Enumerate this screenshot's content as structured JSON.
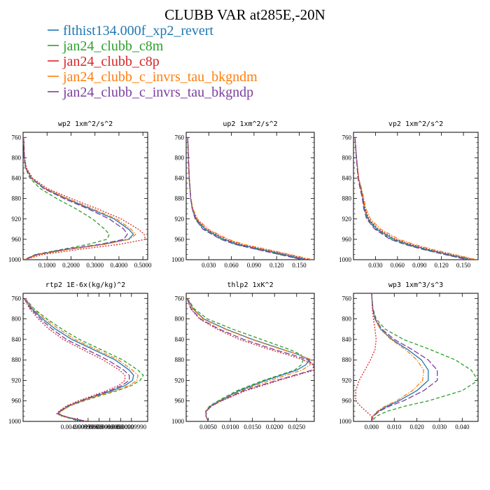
{
  "title": "CLUBB VAR at285E,-20N",
  "legend": [
    {
      "label": "flthist134.000f_xp2_revert",
      "color": "#1f77b4",
      "dash": "solid"
    },
    {
      "label": "jan24_clubb_c8m",
      "color": "#2ca02c",
      "dash": "dash"
    },
    {
      "label": "jan24_clubb_c8p",
      "color": "#d62728",
      "dash": "dot"
    },
    {
      "label": "jan24_clubb_c_invrs_tau_bkgndm",
      "color": "#ff7f0e",
      "dash": "dashdot"
    },
    {
      "label": "jan24_clubb_c_invrs_tau_bkgndp",
      "color": "#7b3f9e",
      "dash": "longdash"
    }
  ],
  "chart_data": [
    {
      "type": "line",
      "title": "wp2  1xm^2/s^2",
      "xlim": [
        0,
        0.52
      ],
      "ylim": [
        1000,
        750
      ],
      "xticks": [
        0.1,
        0.2,
        0.3,
        0.4,
        0.5
      ],
      "xtick_labels": [
        "0.1000",
        "0.2000",
        "0.3000",
        "0.4000",
        "0.5000"
      ],
      "yticks": [
        760,
        800,
        840,
        880,
        920,
        960,
        1000
      ],
      "ytick_labels": [
        "760",
        "800",
        "840",
        "880",
        "920",
        "960",
        "1000"
      ],
      "y": [
        760,
        800,
        820,
        840,
        860,
        880,
        900,
        920,
        940,
        950,
        960,
        970,
        980,
        990,
        1000
      ],
      "series": [
        {
          "name": "flthist134.000f_xp2_revert",
          "values": [
            0.002,
            0.005,
            0.012,
            0.035,
            0.09,
            0.18,
            0.28,
            0.38,
            0.44,
            0.46,
            0.44,
            0.33,
            0.18,
            0.06,
            0.005
          ]
        },
        {
          "name": "jan24_clubb_c8m",
          "values": [
            0.002,
            0.004,
            0.01,
            0.028,
            0.07,
            0.14,
            0.22,
            0.29,
            0.34,
            0.36,
            0.35,
            0.27,
            0.16,
            0.05,
            0.005
          ]
        },
        {
          "name": "jan24_clubb_c8p",
          "values": [
            0.002,
            0.006,
            0.014,
            0.04,
            0.1,
            0.2,
            0.31,
            0.41,
            0.48,
            0.505,
            0.51,
            0.4,
            0.23,
            0.08,
            0.005
          ]
        },
        {
          "name": "jan24_clubb_c_invrs_tau_bkgndm",
          "values": [
            0.002,
            0.005,
            0.012,
            0.036,
            0.092,
            0.185,
            0.29,
            0.39,
            0.45,
            0.47,
            0.445,
            0.34,
            0.19,
            0.065,
            0.005
          ]
        },
        {
          "name": "jan24_clubb_c_invrs_tau_bkgndp",
          "values": [
            0.002,
            0.005,
            0.011,
            0.033,
            0.085,
            0.17,
            0.27,
            0.36,
            0.42,
            0.435,
            0.42,
            0.32,
            0.17,
            0.055,
            0.005
          ]
        }
      ]
    },
    {
      "type": "line",
      "title": "up2  1xm^2/s^2",
      "xlim": [
        0,
        0.17
      ],
      "ylim": [
        1000,
        750
      ],
      "xticks": [
        0.03,
        0.06,
        0.09,
        0.12,
        0.15
      ],
      "xtick_labels": [
        "0.030",
        "0.060",
        "0.090",
        "0.120",
        "0.150"
      ],
      "yticks": [
        760,
        800,
        840,
        880,
        920,
        960,
        1000
      ],
      "ytick_labels": [
        "760",
        "800",
        "840",
        "880",
        "920",
        "960",
        "1000"
      ],
      "y": [
        760,
        800,
        840,
        880,
        900,
        920,
        940,
        960,
        970,
        980,
        990,
        1000
      ],
      "series": [
        {
          "name": "flthist134.000f_xp2_revert",
          "values": [
            0.002,
            0.003,
            0.004,
            0.006,
            0.008,
            0.013,
            0.025,
            0.05,
            0.07,
            0.1,
            0.13,
            0.16
          ]
        },
        {
          "name": "jan24_clubb_c8m",
          "values": [
            0.002,
            0.003,
            0.004,
            0.006,
            0.008,
            0.012,
            0.023,
            0.047,
            0.066,
            0.095,
            0.125,
            0.155
          ]
        },
        {
          "name": "jan24_clubb_c8p",
          "values": [
            0.002,
            0.003,
            0.004,
            0.006,
            0.009,
            0.014,
            0.027,
            0.053,
            0.074,
            0.104,
            0.135,
            0.165
          ]
        },
        {
          "name": "jan24_clubb_c_invrs_tau_bkgndm",
          "values": [
            0.002,
            0.003,
            0.004,
            0.006,
            0.009,
            0.015,
            0.029,
            0.056,
            0.077,
            0.108,
            0.138,
            0.168
          ]
        },
        {
          "name": "jan24_clubb_c_invrs_tau_bkgndp",
          "values": [
            0.002,
            0.003,
            0.004,
            0.006,
            0.008,
            0.012,
            0.022,
            0.046,
            0.065,
            0.094,
            0.124,
            0.155
          ]
        }
      ]
    },
    {
      "type": "line",
      "title": "vp2  1xm^2/s^2",
      "xlim": [
        0,
        0.17
      ],
      "ylim": [
        1000,
        750
      ],
      "xticks": [
        0.03,
        0.06,
        0.09,
        0.12,
        0.15
      ],
      "xtick_labels": [
        "0.030",
        "0.060",
        "0.090",
        "0.120",
        "0.150"
      ],
      "yticks": [
        760,
        800,
        840,
        880,
        920,
        960,
        1000
      ],
      "ytick_labels": [
        "760",
        "800",
        "840",
        "880",
        "920",
        "960",
        "1000"
      ],
      "y": [
        760,
        800,
        840,
        860,
        880,
        900,
        920,
        940,
        960,
        970,
        980,
        990,
        1000
      ],
      "series": [
        {
          "name": "flthist134.000f_xp2_revert",
          "values": [
            0.002,
            0.004,
            0.007,
            0.01,
            0.013,
            0.015,
            0.02,
            0.032,
            0.055,
            0.075,
            0.1,
            0.13,
            0.16
          ]
        },
        {
          "name": "jan24_clubb_c8m",
          "values": [
            0.002,
            0.004,
            0.007,
            0.01,
            0.013,
            0.015,
            0.019,
            0.03,
            0.052,
            0.072,
            0.097,
            0.127,
            0.157
          ]
        },
        {
          "name": "jan24_clubb_c8p",
          "values": [
            0.002,
            0.004,
            0.007,
            0.01,
            0.013,
            0.016,
            0.021,
            0.034,
            0.058,
            0.079,
            0.104,
            0.135,
            0.165
          ]
        },
        {
          "name": "jan24_clubb_c_invrs_tau_bkgndm",
          "values": [
            0.002,
            0.004,
            0.007,
            0.011,
            0.014,
            0.017,
            0.023,
            0.037,
            0.062,
            0.083,
            0.108,
            0.138,
            0.168
          ]
        },
        {
          "name": "jan24_clubb_c_invrs_tau_bkgndp",
          "values": [
            0.002,
            0.004,
            0.006,
            0.009,
            0.012,
            0.014,
            0.018,
            0.029,
            0.05,
            0.07,
            0.095,
            0.125,
            0.155
          ]
        }
      ]
    },
    {
      "type": "line",
      "title": "rtp2  1E-6x(kg/kg)^2",
      "xlim": [
        0,
        0.0115
      ],
      "ylim": [
        1000,
        750
      ],
      "xticks": [
        0.005,
        0.006,
        0.007,
        0.008,
        0.009,
        0.01
      ],
      "xtick_labels": [
        "0.004999999",
        "0.00599999",
        "0.00699999",
        "0.0080000",
        "0.0090000",
        "0.00999990"
      ],
      "yticks": [
        760,
        800,
        840,
        880,
        920,
        960,
        1000
      ],
      "ytick_labels": [
        "760",
        "800",
        "840",
        "880",
        "920",
        "960",
        "1000"
      ],
      "y": [
        760,
        780,
        800,
        820,
        840,
        860,
        880,
        900,
        910,
        920,
        930,
        940,
        950,
        960,
        970,
        980,
        985,
        990,
        1000
      ],
      "series": [
        {
          "name": "flthist134.000f_xp2_revert",
          "values": [
            0.0002,
            0.0008,
            0.0018,
            0.003,
            0.0045,
            0.0065,
            0.0085,
            0.0098,
            0.0102,
            0.0101,
            0.0094,
            0.0082,
            0.0068,
            0.0054,
            0.0042,
            0.0034,
            0.0032,
            0.0038,
            0.0055
          ]
        },
        {
          "name": "jan24_clubb_c8m",
          "values": [
            0.0002,
            0.001,
            0.0022,
            0.0036,
            0.0052,
            0.0072,
            0.0092,
            0.0106,
            0.0111,
            0.0108,
            0.01,
            0.0087,
            0.0071,
            0.0056,
            0.0043,
            0.0035,
            0.0033,
            0.0037,
            0.0052
          ]
        },
        {
          "name": "jan24_clubb_c8p",
          "values": [
            0.0001,
            0.0006,
            0.0014,
            0.0024,
            0.0037,
            0.0055,
            0.0074,
            0.0089,
            0.0094,
            0.0094,
            0.0088,
            0.0077,
            0.0064,
            0.0051,
            0.004,
            0.0033,
            0.0031,
            0.0036,
            0.006
          ]
        },
        {
          "name": "jan24_clubb_c_invrs_tau_bkgndm",
          "values": [
            0.0002,
            0.0009,
            0.002,
            0.0033,
            0.0048,
            0.0068,
            0.0088,
            0.0101,
            0.0106,
            0.0105,
            0.0098,
            0.0085,
            0.0069,
            0.0055,
            0.0043,
            0.0035,
            0.0033,
            0.0039,
            0.0057
          ]
        },
        {
          "name": "jan24_clubb_c_invrs_tau_bkgndp",
          "values": [
            0.0001,
            0.0007,
            0.0016,
            0.0027,
            0.004,
            0.0059,
            0.0078,
            0.0093,
            0.0098,
            0.0098,
            0.0091,
            0.008,
            0.0066,
            0.0053,
            0.0041,
            0.0034,
            0.0032,
            0.0037,
            0.0058
          ]
        }
      ]
    },
    {
      "type": "line",
      "title": "thlp2  1xK^2",
      "xlim": [
        0,
        0.029
      ],
      "ylim": [
        1000,
        750
      ],
      "xticks": [
        0.005,
        0.01,
        0.015,
        0.02,
        0.025
      ],
      "xtick_labels": [
        "0.0050",
        "0.0100",
        "0.0150",
        "0.0200",
        "0.0250"
      ],
      "yticks": [
        760,
        800,
        840,
        880,
        920,
        960,
        1000
      ],
      "ytick_labels": [
        "760",
        "800",
        "840",
        "880",
        "920",
        "960",
        "1000"
      ],
      "y": [
        760,
        780,
        800,
        820,
        840,
        860,
        870,
        880,
        890,
        900,
        920,
        940,
        960,
        970,
        980,
        990,
        1000
      ],
      "series": [
        {
          "name": "flthist134.000f_xp2_revert",
          "values": [
            0.0003,
            0.0015,
            0.004,
            0.009,
            0.015,
            0.022,
            0.0255,
            0.028,
            0.027,
            0.025,
            0.018,
            0.012,
            0.0075,
            0.0055,
            0.0045,
            0.0045,
            0.005
          ]
        },
        {
          "name": "jan24_clubb_c8m",
          "values": [
            0.0003,
            0.0018,
            0.0048,
            0.0105,
            0.017,
            0.0235,
            0.026,
            0.0265,
            0.026,
            0.0245,
            0.0175,
            0.0115,
            0.0072,
            0.0053,
            0.0044,
            0.0045,
            0.005
          ]
        },
        {
          "name": "jan24_clubb_c8p",
          "values": [
            0.0002,
            0.001,
            0.003,
            0.007,
            0.012,
            0.019,
            0.023,
            0.0265,
            0.029,
            0.029,
            0.021,
            0.0135,
            0.008,
            0.0058,
            0.0046,
            0.0045,
            0.005
          ]
        },
        {
          "name": "jan24_clubb_c_invrs_tau_bkgndm",
          "values": [
            0.0003,
            0.0014,
            0.0038,
            0.0088,
            0.0148,
            0.0218,
            0.0255,
            0.0285,
            0.028,
            0.0262,
            0.019,
            0.0125,
            0.0077,
            0.0056,
            0.0045,
            0.0045,
            0.005
          ]
        },
        {
          "name": "jan24_clubb_c_invrs_tau_bkgndp",
          "values": [
            0.0002,
            0.0011,
            0.0032,
            0.0075,
            0.013,
            0.02,
            0.024,
            0.0275,
            0.029,
            0.0285,
            0.0205,
            0.013,
            0.0079,
            0.0057,
            0.0045,
            0.0045,
            0.005
          ]
        }
      ]
    },
    {
      "type": "line",
      "title": "wp3  1xm^3/s^3",
      "xlim": [
        -0.008,
        0.047
      ],
      "ylim": [
        1000,
        750
      ],
      "xticks": [
        0,
        0.01,
        0.02,
        0.03,
        0.04
      ],
      "xtick_labels": [
        "0.000",
        "0.010",
        "0.020",
        "0.030",
        "0.040"
      ],
      "yticks": [
        760,
        800,
        840,
        880,
        920,
        960,
        1000
      ],
      "ytick_labels": [
        "760",
        "800",
        "840",
        "880",
        "920",
        "960",
        "1000"
      ],
      "y": [
        750,
        780,
        800,
        820,
        840,
        860,
        880,
        900,
        920,
        940,
        960,
        970,
        980,
        990,
        1000
      ],
      "series": [
        {
          "name": "flthist134.000f_xp2_revert",
          "values": [
            0.0,
            0.0005,
            0.0015,
            0.004,
            0.009,
            0.016,
            0.022,
            0.025,
            0.025,
            0.02,
            0.012,
            0.007,
            0.003,
            0.0005,
            0.0
          ]
        },
        {
          "name": "jan24_clubb_c8m",
          "values": [
            0.0,
            0.0006,
            0.002,
            0.006,
            0.014,
            0.026,
            0.037,
            0.044,
            0.047,
            0.04,
            0.025,
            0.015,
            0.007,
            0.002,
            0.0
          ]
        },
        {
          "name": "jan24_clubb_c8p",
          "values": [
            0.0,
            0.0003,
            0.0008,
            0.0015,
            0.002,
            0.0015,
            -0.0005,
            -0.003,
            -0.0055,
            -0.007,
            -0.007,
            -0.005,
            -0.0025,
            0.0,
            0.0
          ]
        },
        {
          "name": "jan24_clubb_c_invrs_tau_bkgndm",
          "values": [
            0.0,
            0.0005,
            0.0014,
            0.0038,
            0.0085,
            0.015,
            0.02,
            0.023,
            0.0225,
            0.018,
            0.011,
            0.006,
            0.0025,
            0.0005,
            0.0
          ]
        },
        {
          "name": "jan24_clubb_c_invrs_tau_bkgndp",
          "values": [
            0.0,
            0.0005,
            0.0016,
            0.0045,
            0.01,
            0.018,
            0.025,
            0.029,
            0.029,
            0.023,
            0.014,
            0.008,
            0.0035,
            0.0007,
            0.0
          ]
        }
      ]
    }
  ]
}
